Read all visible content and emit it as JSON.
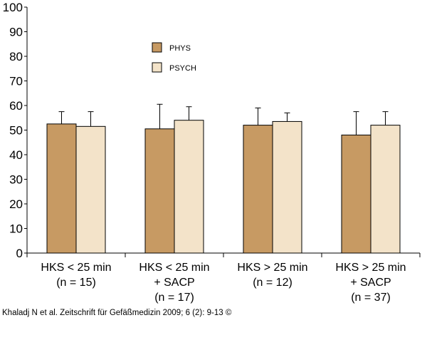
{
  "chart_data": {
    "type": "bar",
    "categories": [
      [
        "HKS < 25 min",
        "(n = 15)"
      ],
      [
        "HKS < 25 min",
        "+ SACP",
        "(n = 17)"
      ],
      [
        "HKS > 25 min",
        "(n = 12)"
      ],
      [
        "HKS > 25 min",
        "+ SACP",
        "(n = 37)"
      ]
    ],
    "series": [
      {
        "name": "PHYS",
        "color": "#c79a63",
        "values": [
          52.5,
          50.5,
          52,
          48
        ],
        "error_upper": [
          57.5,
          60.5,
          59,
          57.5
        ]
      },
      {
        "name": "PSYCH",
        "color": "#f3e3c9",
        "values": [
          51.5,
          54,
          53.5,
          52
        ],
        "error_upper": [
          57.5,
          59.5,
          57,
          57.5
        ]
      }
    ],
    "ylim": [
      0,
      100
    ],
    "yticks": [
      0,
      10,
      20,
      30,
      40,
      50,
      60,
      70,
      80,
      90,
      100
    ],
    "title": "",
    "xlabel": "",
    "ylabel": "",
    "legend_position": "top-center"
  },
  "credit": "Khaladj N et al. Zeitschrift für Gefäßmedizin 2009; 6 (2): 9-13 ©"
}
